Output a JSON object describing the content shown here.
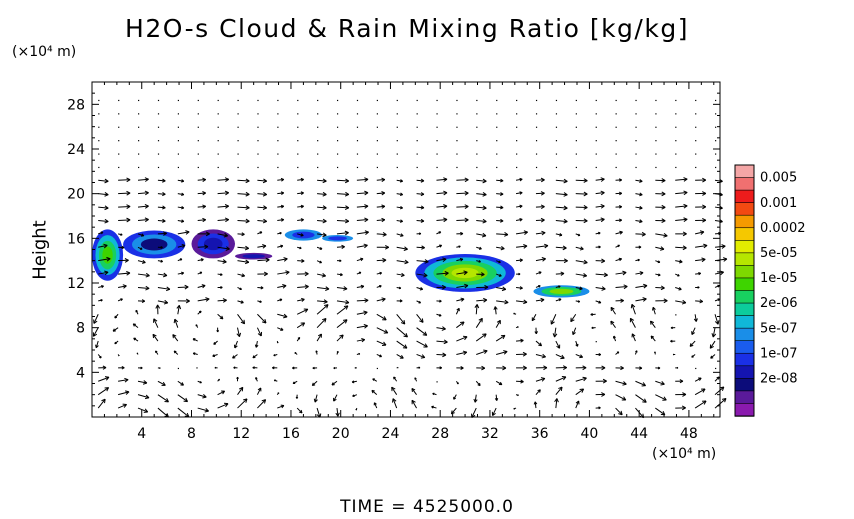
{
  "chart_data": {
    "type": "heatmap",
    "title": "H2O-s Cloud & Rain Mixing Ratio [kg/kg]",
    "y_unit": "(×10⁴ m)",
    "x_unit": "(×10⁴ m)",
    "ylabel": "Height",
    "xlabel": "",
    "x_ticks": [
      4,
      8,
      12,
      16,
      20,
      24,
      28,
      32,
      36,
      40,
      44,
      48
    ],
    "y_ticks": [
      4,
      8,
      12,
      16,
      20,
      24,
      28
    ],
    "xlim": [
      0,
      50.5
    ],
    "ylim": [
      0,
      30
    ],
    "grid": false,
    "overlay": "wind vectors",
    "colorbar": {
      "labels": [
        "0.005",
        "0.001",
        "0.0002",
        "5e-05",
        "1e-05",
        "2e-06",
        "5e-07",
        "1e-07",
        "2e-08"
      ],
      "colors": [
        "#f4a6a6",
        "#f07070",
        "#ee1c1c",
        "#f24a12",
        "#f59a00",
        "#f5c800",
        "#e2ec00",
        "#b6e600",
        "#7ed800",
        "#3ed400",
        "#18d060",
        "#0ccc9c",
        "#10b8d8",
        "#1a8ee8",
        "#1a5cee",
        "#1a30e6",
        "#1414b0",
        "#0c0c7a",
        "#5a1a9a",
        "#8a1aae"
      ]
    },
    "regions": [
      {
        "x": [
          0,
          2.5
        ],
        "y": [
          12.2,
          16.8
        ],
        "level": "2e-06 to 0.0002"
      },
      {
        "x": [
          2.5,
          7.5
        ],
        "y": [
          14.2,
          16.7
        ],
        "level": "5e-07 to 1e-06"
      },
      {
        "x": [
          8,
          11.5
        ],
        "y": [
          14.2,
          16.8
        ],
        "level": "2e-08 to 1e-07"
      },
      {
        "x": [
          11.5,
          14.5
        ],
        "y": [
          14.1,
          14.7
        ],
        "level": "2e-08 to 1e-07"
      },
      {
        "x": [
          15.5,
          18.5
        ],
        "y": [
          15.8,
          16.8
        ],
        "level": "5e-07 to 1e-07"
      },
      {
        "x": [
          18.5,
          21
        ],
        "y": [
          15.7,
          16.3
        ],
        "level": "5e-07 to 1e-07"
      },
      {
        "x": [
          26,
          34
        ],
        "y": [
          11.2,
          14.6
        ],
        "level": "1e-07 to 5e-05"
      },
      {
        "x": [
          35.5,
          40
        ],
        "y": [
          10.7,
          11.8
        ],
        "level": "5e-07 to 1e-05"
      }
    ]
  },
  "footer": {
    "time_label": "TIME = 4525000.0"
  }
}
